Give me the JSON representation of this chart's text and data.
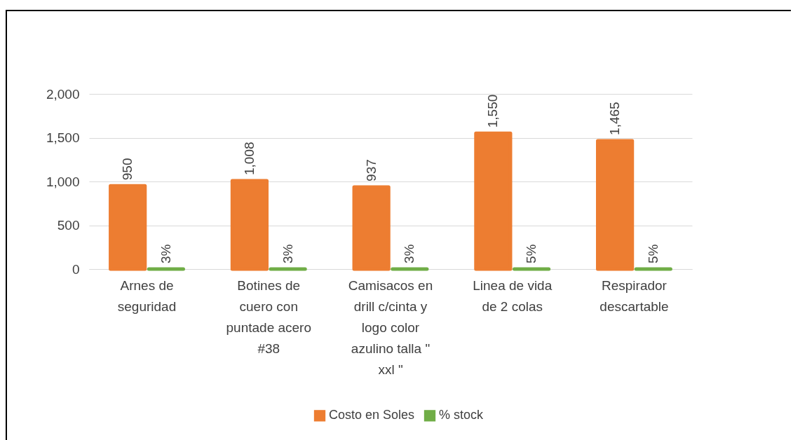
{
  "chart_data": {
    "type": "bar",
    "categories": [
      "Arnes de seguridad",
      "Botines de cuero con puntade acero #38",
      "Camisacos en drill c/cinta y logo color azulino talla \" xxl \"",
      "Linea de vida de 2 colas",
      "Respirador descartable"
    ],
    "series": [
      {
        "name": "Costo en Soles",
        "color": "#ed7d31",
        "values": [
          950,
          1008,
          937,
          1550,
          1465
        ],
        "value_labels": [
          "950",
          "1,008",
          "937",
          "1,550",
          "1,465"
        ]
      },
      {
        "name": "% stock",
        "color": "#70ad47",
        "values": [
          0.03,
          0.03,
          0.03,
          0.05,
          0.05
        ],
        "value_labels": [
          "3%",
          "3%",
          "3%",
          "5%",
          "5%"
        ]
      }
    ],
    "ylim": [
      0,
      2000
    ],
    "yticks": [
      0,
      500,
      {
        "value": 1000,
        "label": "1,000"
      },
      {
        "value": 1500,
        "label": "1,500"
      },
      {
        "value": 2000,
        "label": "2,000"
      }
    ],
    "grid": "y",
    "legend": "bottom"
  }
}
